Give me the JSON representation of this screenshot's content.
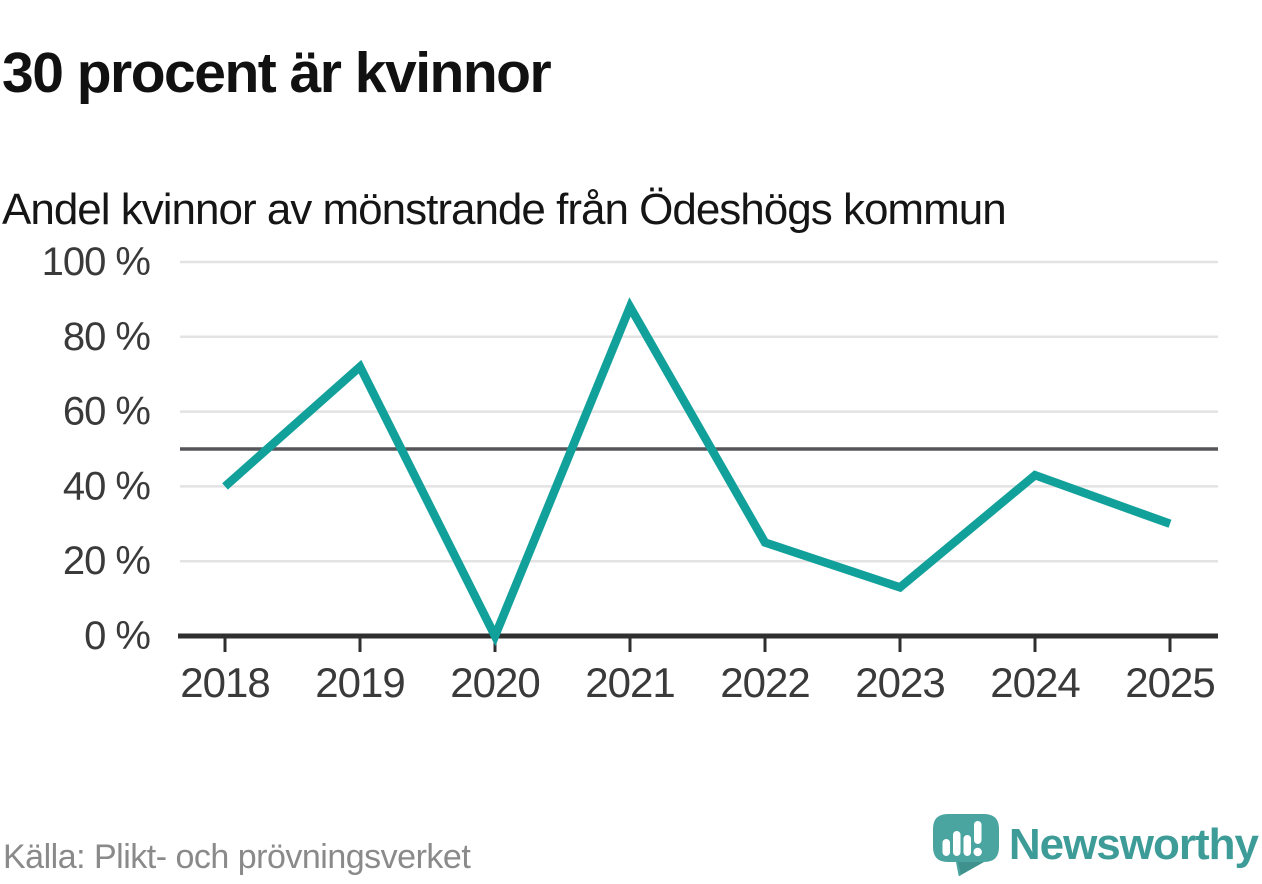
{
  "header": {
    "title": "30 procent är kvinnor",
    "subtitle": "Andel kvinnor av mönstrande från Ödeshögs kommun"
  },
  "chart_data": {
    "type": "line",
    "title": "30 procent är kvinnor",
    "subtitle": "Andel kvinnor av mönstrande från Ödeshögs kommun",
    "categories": [
      "2018",
      "2019",
      "2020",
      "2021",
      "2022",
      "2023",
      "2024",
      "2025"
    ],
    "values": [
      40,
      72,
      0,
      88,
      25,
      13,
      43,
      30
    ],
    "unit": "%",
    "ylim": [
      0,
      100
    ],
    "y_ticks": [
      {
        "value": 0,
        "label": "0 %"
      },
      {
        "value": 20,
        "label": "20 %"
      },
      {
        "value": 40,
        "label": "40 %"
      },
      {
        "value": 60,
        "label": "60 %"
      },
      {
        "value": 80,
        "label": "80 %"
      },
      {
        "value": 100,
        "label": "100 %"
      }
    ],
    "reference_line": 50,
    "grid": true,
    "legend": "none",
    "colors": {
      "line": "#12a19a",
      "grid": "#e3e3e3",
      "reference": "#55555a",
      "axis": "#2f2f2f",
      "tick_label": "#3a3a3a"
    }
  },
  "footer": {
    "source": "Källa: Plikt- och prövningsverket",
    "brand": "Newsworthy",
    "brand_color": "#3d9c98",
    "logo_mark_color": "#4aa5a1",
    "logo_mark_shade_color": "#3f918d",
    "logo_icon": "bar-chart-exclamation-speech-bubble"
  }
}
